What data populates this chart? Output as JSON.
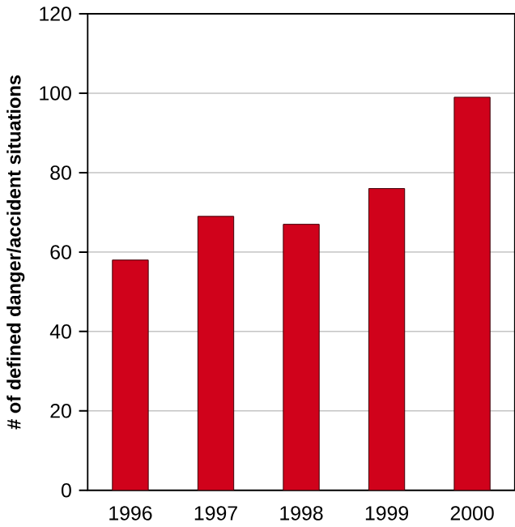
{
  "chart_data": {
    "type": "bar",
    "ylabel": "# of defined danger/accident situations",
    "categories": [
      "1996",
      "1997",
      "1998",
      "1999",
      "2000"
    ],
    "values": [
      58,
      69,
      67,
      76,
      99
    ],
    "color": "#d0021b",
    "ylim": [
      0,
      120
    ],
    "yticks": [
      0,
      20,
      40,
      60,
      80,
      100,
      120
    ],
    "grid": "y"
  }
}
